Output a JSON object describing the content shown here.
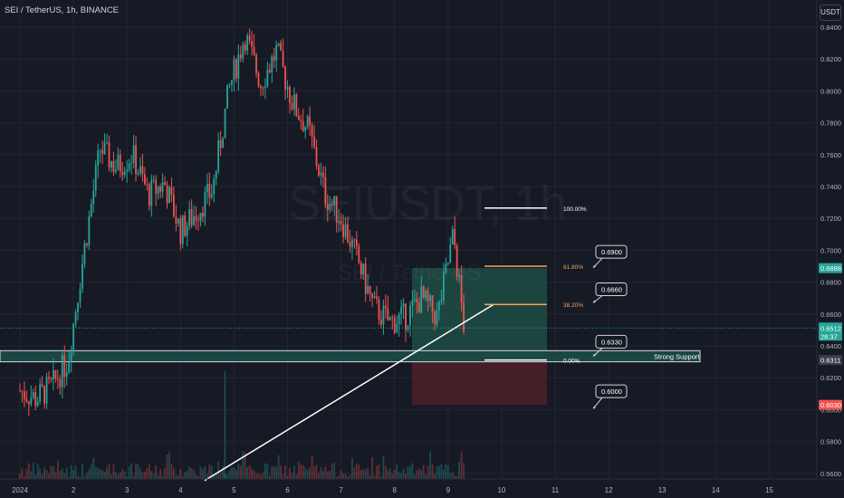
{
  "symbol_title": "SEI / TetherUS, 1h, BINANCE",
  "watermark": {
    "symbol": "SEIUSDT, 1h",
    "name": "SEI / TetherUS"
  },
  "currency_button": "USDT",
  "price_axis_labels": [
    "0.8400",
    "0.8200",
    "0.8000",
    "0.7800",
    "0.7600",
    "0.7400",
    "0.7200",
    "0.7000",
    "0.6800",
    "0.6600",
    "0.6400",
    "0.6200",
    "0.6000",
    "0.5800",
    "0.5600"
  ],
  "time_axis_labels": [
    "2024",
    "2",
    "3",
    "4",
    "5",
    "6",
    "7",
    "8",
    "9",
    "10",
    "11",
    "12",
    "13",
    "14",
    "15"
  ],
  "price_badges": {
    "target": "0.6888",
    "current": "0.6512",
    "countdown": "28:37",
    "support": "0.6311",
    "stop": "0.6030"
  },
  "fibonacci": [
    {
      "label": "100.00%"
    },
    {
      "label": "61.80%"
    },
    {
      "label": "38.20%"
    },
    {
      "label": "0.00%"
    }
  ],
  "callouts": [
    "0.6900",
    "0.6660",
    "0.6330",
    "0.6000"
  ],
  "support_label": "Strong Support",
  "colors": {
    "background": "#161a25",
    "up": "#26a69a",
    "down": "#ef5350",
    "fib_orange": "#f5a45b",
    "target_zone": "#1f4e45",
    "stop_zone": "#4a1f27",
    "support_zone": "#1b4a45"
  },
  "chart_data": {
    "type": "candlestick",
    "symbol": "SEIUSDT",
    "interval": "1h",
    "exchange": "BINANCE",
    "ylim": [
      0.556,
      0.855
    ],
    "last_price": 0.6512,
    "path_closes": [
      [
        0.0,
        0.612
      ],
      [
        0.3,
        0.607
      ],
      [
        0.6,
        0.615
      ],
      [
        0.9,
        0.631
      ],
      [
        1.2,
        0.7
      ],
      [
        1.5,
        0.764
      ],
      [
        1.8,
        0.752
      ],
      [
        2.1,
        0.76
      ],
      [
        2.4,
        0.735
      ],
      [
        2.7,
        0.742
      ],
      [
        3.0,
        0.712
      ],
      [
        3.3,
        0.724
      ],
      [
        3.6,
        0.738
      ],
      [
        3.9,
        0.8
      ],
      [
        4.2,
        0.835
      ],
      [
        4.5,
        0.805
      ],
      [
        4.8,
        0.825
      ],
      [
        5.1,
        0.792
      ],
      [
        5.4,
        0.775
      ],
      [
        5.7,
        0.735
      ],
      [
        6.0,
        0.72
      ],
      [
        6.3,
        0.695
      ],
      [
        6.6,
        0.665
      ],
      [
        6.9,
        0.655
      ],
      [
        7.2,
        0.658
      ],
      [
        7.5,
        0.67
      ],
      [
        7.8,
        0.658
      ],
      [
        8.1,
        0.71
      ],
      [
        8.3,
        0.651
      ]
    ],
    "levels": {
      "fib_100": 0.7265,
      "fib_61_8": 0.69,
      "fib_38_2": 0.666,
      "fib_0": 0.6311,
      "support_zone": [
        0.63,
        0.637
      ],
      "target_zone": [
        0.6311,
        0.6888
      ],
      "stop_zone": [
        0.603,
        0.6311
      ]
    },
    "trendline": [
      [
        3.45,
        0.5555
      ],
      [
        8.85,
        0.666
      ]
    ]
  }
}
